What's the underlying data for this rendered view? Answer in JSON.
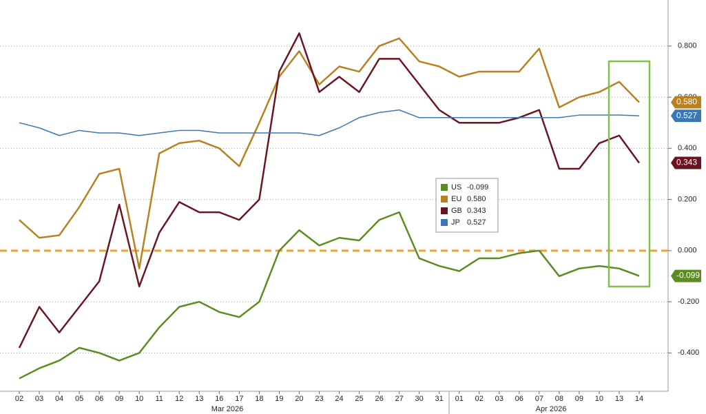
{
  "chart_data": {
    "type": "line",
    "categories": [
      "02",
      "03",
      "04",
      "05",
      "06",
      "09",
      "10",
      "11",
      "12",
      "13",
      "16",
      "17",
      "18",
      "19",
      "20",
      "23",
      "24",
      "25",
      "26",
      "27",
      "30",
      "31",
      "01",
      "02",
      "03",
      "06",
      "07",
      "08",
      "09",
      "10",
      "13",
      "14"
    ],
    "month_labels": [
      "Mar 2026",
      "Apr 2026"
    ],
    "series": [
      {
        "name": "US",
        "color": "#5b8c1f",
        "values": [
          -0.5,
          -0.46,
          -0.43,
          -0.38,
          -0.4,
          -0.43,
          -0.4,
          -0.3,
          -0.22,
          -0.2,
          -0.24,
          -0.26,
          -0.2,
          0.0,
          0.08,
          0.02,
          0.05,
          0.04,
          0.12,
          0.15,
          -0.03,
          -0.06,
          -0.08,
          -0.03,
          -0.03,
          -0.01,
          0.0,
          -0.1,
          -0.07,
          -0.06,
          -0.07,
          -0.099
        ],
        "value_labels": [
          null,
          null,
          null,
          null,
          null,
          null,
          null,
          null,
          null,
          null,
          null,
          null,
          null,
          null,
          null,
          null,
          null,
          null,
          null,
          null,
          null,
          null,
          null,
          null,
          null,
          null,
          null,
          null,
          null,
          null,
          null,
          "-0.099"
        ]
      },
      {
        "name": "EU",
        "color": "#b9801f",
        "values": [
          0.12,
          0.05,
          0.06,
          0.17,
          0.3,
          0.32,
          -0.07,
          0.38,
          0.42,
          0.43,
          0.4,
          0.33,
          0.5,
          0.68,
          0.78,
          0.65,
          0.72,
          0.7,
          0.8,
          0.83,
          0.74,
          0.72,
          0.68,
          0.7,
          0.7,
          0.7,
          0.79,
          0.56,
          0.6,
          0.62,
          0.66,
          0.58
        ],
        "value_labels": [
          null,
          null,
          null,
          null,
          null,
          null,
          null,
          null,
          null,
          null,
          null,
          null,
          null,
          null,
          null,
          null,
          null,
          null,
          null,
          null,
          null,
          null,
          null,
          null,
          null,
          null,
          null,
          null,
          null,
          null,
          null,
          "0.580"
        ]
      },
      {
        "name": "GB",
        "color": "#6b1420",
        "values": [
          -0.38,
          -0.22,
          -0.32,
          -0.22,
          -0.12,
          0.18,
          -0.14,
          0.07,
          0.19,
          0.15,
          0.15,
          0.12,
          0.2,
          0.7,
          0.85,
          0.62,
          0.68,
          0.62,
          0.75,
          0.75,
          0.65,
          0.55,
          0.5,
          0.5,
          0.5,
          0.52,
          0.55,
          0.32,
          0.32,
          0.42,
          0.45,
          0.343
        ],
        "value_labels": [
          null,
          null,
          null,
          null,
          null,
          null,
          null,
          null,
          null,
          null,
          null,
          null,
          null,
          null,
          null,
          null,
          null,
          null,
          null,
          null,
          null,
          null,
          null,
          null,
          null,
          null,
          null,
          null,
          null,
          null,
          null,
          "0.343"
        ]
      },
      {
        "name": "JP",
        "color": "#3a78b5",
        "values": [
          0.5,
          0.48,
          0.45,
          0.47,
          0.46,
          0.46,
          0.45,
          0.46,
          0.47,
          0.47,
          0.46,
          0.46,
          0.46,
          0.46,
          0.46,
          0.45,
          0.48,
          0.52,
          0.54,
          0.55,
          0.52,
          0.52,
          0.52,
          0.52,
          0.52,
          0.52,
          0.52,
          0.52,
          0.53,
          0.53,
          0.53,
          0.527
        ],
        "value_labels": [
          null,
          null,
          null,
          null,
          null,
          null,
          null,
          null,
          null,
          null,
          null,
          null,
          null,
          null,
          null,
          null,
          null,
          null,
          null,
          null,
          null,
          null,
          null,
          null,
          null,
          null,
          null,
          null,
          null,
          null,
          null,
          "0.527"
        ]
      }
    ],
    "ylim": [
      -0.55,
      0.98
    ],
    "yticks": [
      {
        "value": 0.8,
        "label": "0.800"
      },
      {
        "value": 0.6,
        "label": "0.600"
      },
      {
        "value": 0.4,
        "label": "0.400"
      },
      {
        "value": 0.2,
        "label": "0.200"
      },
      {
        "value": 0,
        "label": "0.000"
      },
      {
        "value": -0.2,
        "label": "-0.200"
      },
      {
        "value": -0.4,
        "label": "-0.400"
      }
    ],
    "grid": true
  }
}
